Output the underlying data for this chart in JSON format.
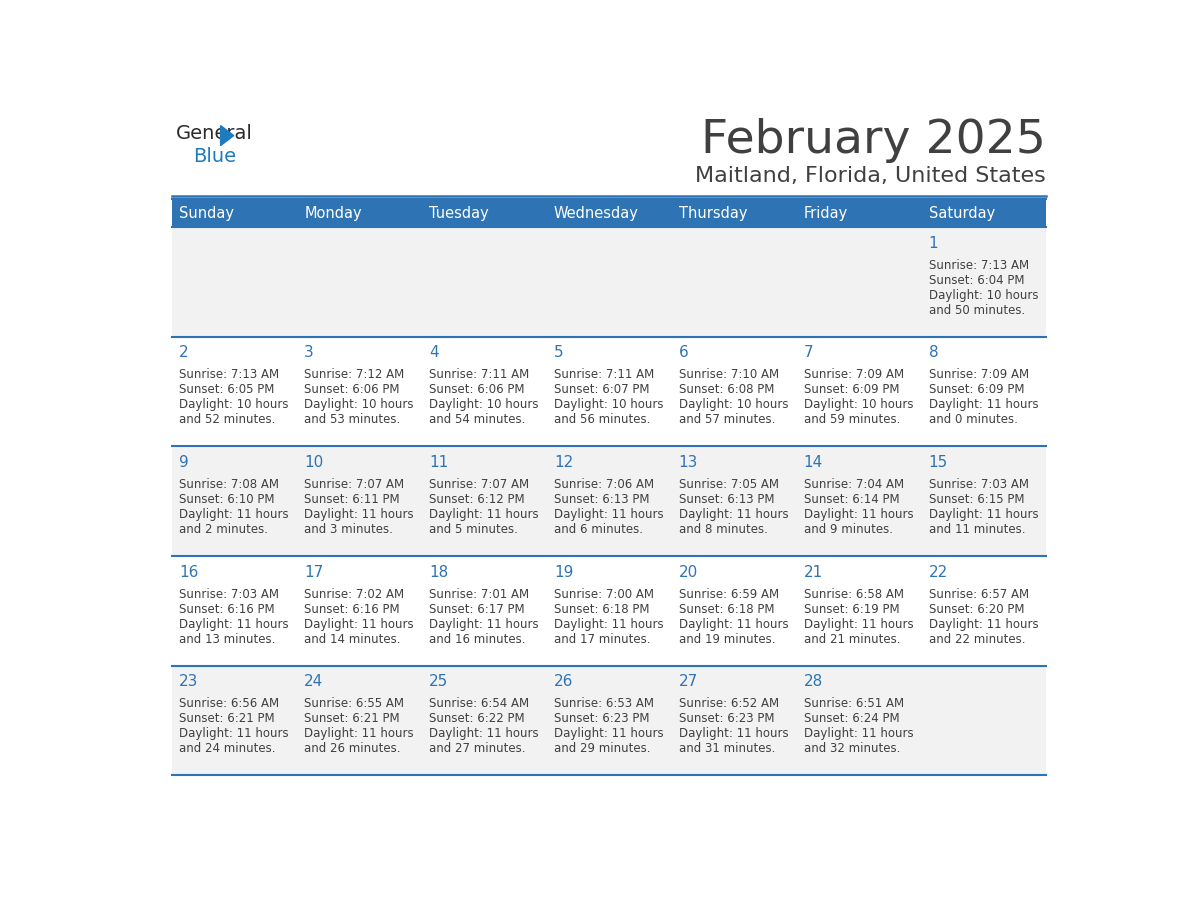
{
  "title": "February 2025",
  "subtitle": "Maitland, Florida, United States",
  "header_bg": "#2E74B5",
  "header_text_color": "#FFFFFF",
  "days_of_week": [
    "Sunday",
    "Monday",
    "Tuesday",
    "Wednesday",
    "Thursday",
    "Friday",
    "Saturday"
  ],
  "cell_bg_row0": "#F2F2F2",
  "cell_bg_row1": "#FFFFFF",
  "cell_bg_row2": "#F2F2F2",
  "cell_bg_row3": "#FFFFFF",
  "cell_bg_row4": "#F2F2F2",
  "cell_border_color": "#2E74B5",
  "day_number_color": "#2E74B5",
  "info_text_color": "#404040",
  "title_color": "#404040",
  "subtitle_color": "#404040",
  "logo_general_color": "#2B2B2B",
  "logo_blue_color": "#1F7BC0",
  "calendar_data": [
    [
      null,
      null,
      null,
      null,
      null,
      null,
      {
        "day": "1",
        "sunrise": "7:13 AM",
        "sunset": "6:04 PM",
        "daylight_h": "10 hours",
        "daylight_m": "and 50 minutes."
      }
    ],
    [
      {
        "day": "2",
        "sunrise": "7:13 AM",
        "sunset": "6:05 PM",
        "daylight_h": "10 hours",
        "daylight_m": "and 52 minutes."
      },
      {
        "day": "3",
        "sunrise": "7:12 AM",
        "sunset": "6:06 PM",
        "daylight_h": "10 hours",
        "daylight_m": "and 53 minutes."
      },
      {
        "day": "4",
        "sunrise": "7:11 AM",
        "sunset": "6:06 PM",
        "daylight_h": "10 hours",
        "daylight_m": "and 54 minutes."
      },
      {
        "day": "5",
        "sunrise": "7:11 AM",
        "sunset": "6:07 PM",
        "daylight_h": "10 hours",
        "daylight_m": "and 56 minutes."
      },
      {
        "day": "6",
        "sunrise": "7:10 AM",
        "sunset": "6:08 PM",
        "daylight_h": "10 hours",
        "daylight_m": "and 57 minutes."
      },
      {
        "day": "7",
        "sunrise": "7:09 AM",
        "sunset": "6:09 PM",
        "daylight_h": "10 hours",
        "daylight_m": "and 59 minutes."
      },
      {
        "day": "8",
        "sunrise": "7:09 AM",
        "sunset": "6:09 PM",
        "daylight_h": "11 hours",
        "daylight_m": "and 0 minutes."
      }
    ],
    [
      {
        "day": "9",
        "sunrise": "7:08 AM",
        "sunset": "6:10 PM",
        "daylight_h": "11 hours",
        "daylight_m": "and 2 minutes."
      },
      {
        "day": "10",
        "sunrise": "7:07 AM",
        "sunset": "6:11 PM",
        "daylight_h": "11 hours",
        "daylight_m": "and 3 minutes."
      },
      {
        "day": "11",
        "sunrise": "7:07 AM",
        "sunset": "6:12 PM",
        "daylight_h": "11 hours",
        "daylight_m": "and 5 minutes."
      },
      {
        "day": "12",
        "sunrise": "7:06 AM",
        "sunset": "6:13 PM",
        "daylight_h": "11 hours",
        "daylight_m": "and 6 minutes."
      },
      {
        "day": "13",
        "sunrise": "7:05 AM",
        "sunset": "6:13 PM",
        "daylight_h": "11 hours",
        "daylight_m": "and 8 minutes."
      },
      {
        "day": "14",
        "sunrise": "7:04 AM",
        "sunset": "6:14 PM",
        "daylight_h": "11 hours",
        "daylight_m": "and 9 minutes."
      },
      {
        "day": "15",
        "sunrise": "7:03 AM",
        "sunset": "6:15 PM",
        "daylight_h": "11 hours",
        "daylight_m": "and 11 minutes."
      }
    ],
    [
      {
        "day": "16",
        "sunrise": "7:03 AM",
        "sunset": "6:16 PM",
        "daylight_h": "11 hours",
        "daylight_m": "and 13 minutes."
      },
      {
        "day": "17",
        "sunrise": "7:02 AM",
        "sunset": "6:16 PM",
        "daylight_h": "11 hours",
        "daylight_m": "and 14 minutes."
      },
      {
        "day": "18",
        "sunrise": "7:01 AM",
        "sunset": "6:17 PM",
        "daylight_h": "11 hours",
        "daylight_m": "and 16 minutes."
      },
      {
        "day": "19",
        "sunrise": "7:00 AM",
        "sunset": "6:18 PM",
        "daylight_h": "11 hours",
        "daylight_m": "and 17 minutes."
      },
      {
        "day": "20",
        "sunrise": "6:59 AM",
        "sunset": "6:18 PM",
        "daylight_h": "11 hours",
        "daylight_m": "and 19 minutes."
      },
      {
        "day": "21",
        "sunrise": "6:58 AM",
        "sunset": "6:19 PM",
        "daylight_h": "11 hours",
        "daylight_m": "and 21 minutes."
      },
      {
        "day": "22",
        "sunrise": "6:57 AM",
        "sunset": "6:20 PM",
        "daylight_h": "11 hours",
        "daylight_m": "and 22 minutes."
      }
    ],
    [
      {
        "day": "23",
        "sunrise": "6:56 AM",
        "sunset": "6:21 PM",
        "daylight_h": "11 hours",
        "daylight_m": "and 24 minutes."
      },
      {
        "day": "24",
        "sunrise": "6:55 AM",
        "sunset": "6:21 PM",
        "daylight_h": "11 hours",
        "daylight_m": "and 26 minutes."
      },
      {
        "day": "25",
        "sunrise": "6:54 AM",
        "sunset": "6:22 PM",
        "daylight_h": "11 hours",
        "daylight_m": "and 27 minutes."
      },
      {
        "day": "26",
        "sunrise": "6:53 AM",
        "sunset": "6:23 PM",
        "daylight_h": "11 hours",
        "daylight_m": "and 29 minutes."
      },
      {
        "day": "27",
        "sunrise": "6:52 AM",
        "sunset": "6:23 PM",
        "daylight_h": "11 hours",
        "daylight_m": "and 31 minutes."
      },
      {
        "day": "28",
        "sunrise": "6:51 AM",
        "sunset": "6:24 PM",
        "daylight_h": "11 hours",
        "daylight_m": "and 32 minutes."
      },
      null
    ]
  ]
}
